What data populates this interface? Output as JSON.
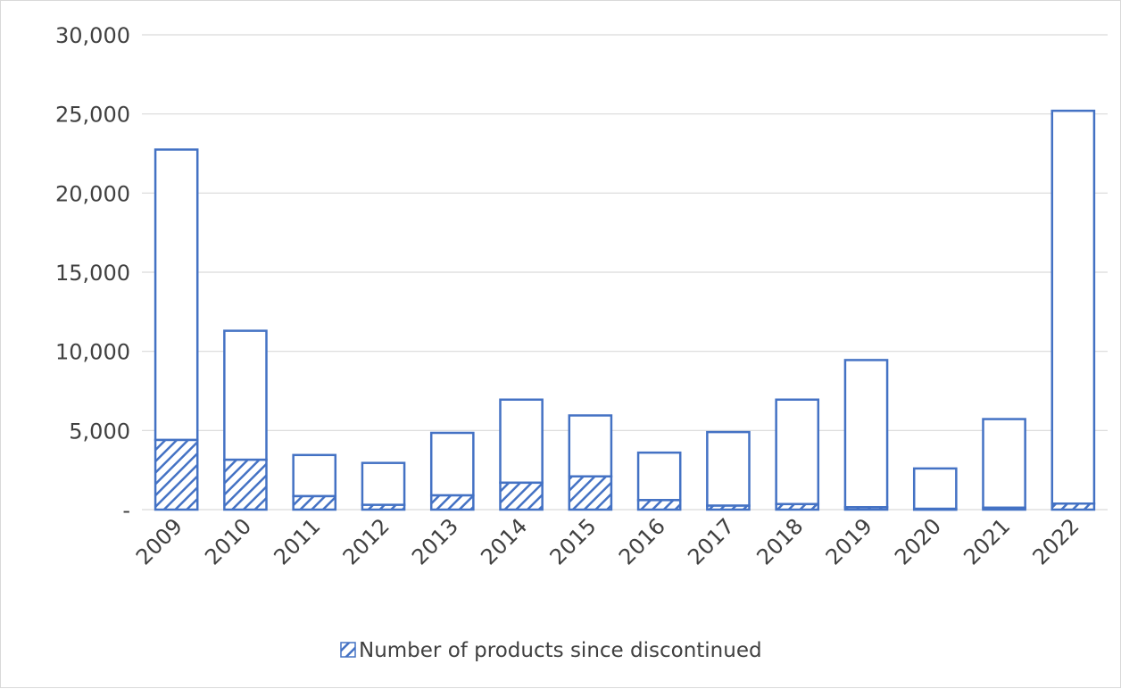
{
  "chart_data": {
    "type": "bar",
    "categories": [
      "2009",
      "2010",
      "2011",
      "2012",
      "2013",
      "2014",
      "2015",
      "2016",
      "2017",
      "2018",
      "2019",
      "2020",
      "2021",
      "2022"
    ],
    "series": [
      {
        "name": "Number of products since discontinued",
        "values": [
          4400,
          3150,
          850,
          300,
          900,
          1700,
          2100,
          600,
          250,
          350,
          150,
          50,
          120,
          380
        ]
      },
      {
        "name": "",
        "values": [
          18350,
          8150,
          2600,
          2650,
          3950,
          5250,
          3850,
          3000,
          4650,
          6600,
          9300,
          2550,
          5600,
          24820
        ]
      }
    ],
    "stacked": true,
    "y_tick_labels": [
      "-",
      "5,000",
      "10,000",
      "15,000",
      "20,000",
      "25,000",
      "30,000"
    ],
    "ylim": [
      0,
      30000
    ],
    "title": "",
    "xlabel": "",
    "ylabel": "",
    "grid": true,
    "legend": "bottom",
    "colors": {
      "bar_edge": "#4472c4",
      "hatch": "#4472c4",
      "grid": "#d9d9d9",
      "text": "#404040"
    }
  }
}
